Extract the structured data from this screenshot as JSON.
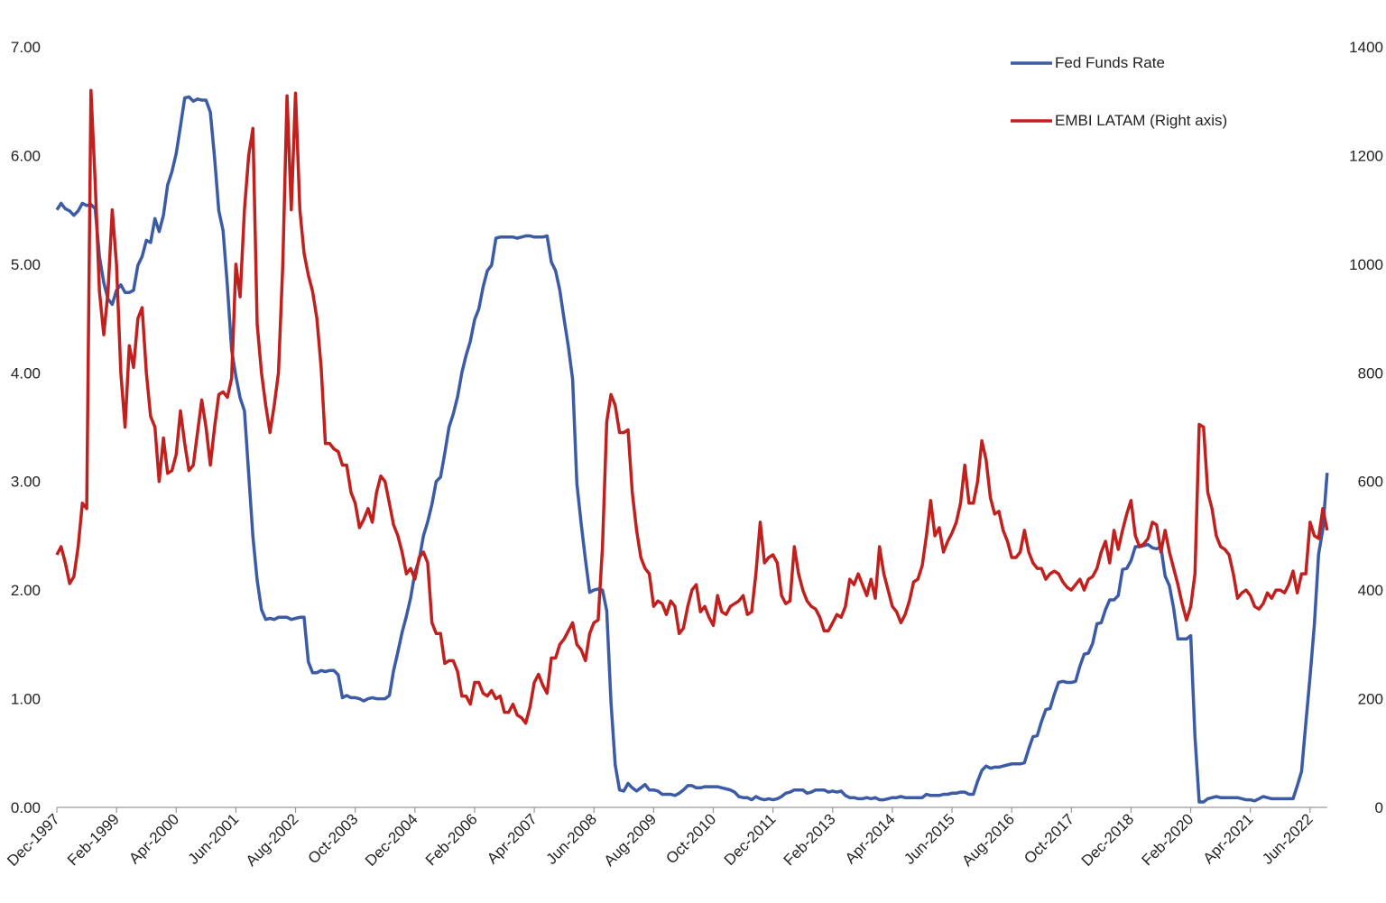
{
  "chart_data": {
    "type": "line",
    "title": "",
    "xlabel": "",
    "ylabel": "",
    "x_start": "Dec-1997",
    "frequency": "monthly",
    "x_ticks": [
      "Dec-1997",
      "Feb-1999",
      "Apr-2000",
      "Jun-2001",
      "Aug-2002",
      "Oct-2003",
      "Dec-2004",
      "Feb-2006",
      "Apr-2007",
      "Jun-2008",
      "Aug-2009",
      "Oct-2010",
      "Dec-2011",
      "Feb-2013",
      "Apr-2014",
      "Jun-2015",
      "Aug-2016",
      "Oct-2017",
      "Dec-2018",
      "Feb-2020",
      "Apr-2021",
      "Jun-2022"
    ],
    "y_left": {
      "lim": [
        0,
        7
      ],
      "ticks": [
        "0.00",
        "1.00",
        "2.00",
        "3.00",
        "4.00",
        "5.00",
        "6.00",
        "7.00"
      ]
    },
    "y_right": {
      "lim": [
        0,
        1400
      ],
      "ticks": [
        "0",
        "200",
        "400",
        "600",
        "800",
        "1000",
        "1200",
        "1400"
      ]
    },
    "grid": false,
    "legend_position": "top-right",
    "series": [
      {
        "name": "Fed Funds Rate",
        "axis": "left",
        "color": "#3B5BA5",
        "values": [
          5.5,
          5.56,
          5.51,
          5.49,
          5.45,
          5.49,
          5.56,
          5.54,
          5.55,
          5.51,
          5.07,
          4.83,
          4.68,
          4.63,
          4.76,
          4.81,
          4.74,
          4.74,
          4.76,
          4.99,
          5.07,
          5.22,
          5.2,
          5.42,
          5.3,
          5.45,
          5.73,
          5.85,
          6.02,
          6.27,
          6.53,
          6.54,
          6.5,
          6.52,
          6.51,
          6.51,
          6.4,
          5.98,
          5.49,
          5.31,
          4.8,
          4.21,
          3.97,
          3.77,
          3.65,
          3.07,
          2.49,
          2.09,
          1.82,
          1.73,
          1.74,
          1.73,
          1.75,
          1.75,
          1.75,
          1.73,
          1.74,
          1.75,
          1.75,
          1.34,
          1.24,
          1.24,
          1.26,
          1.25,
          1.26,
          1.26,
          1.22,
          1.01,
          1.03,
          1.01,
          1.01,
          1.0,
          0.98,
          1.0,
          1.01,
          1.0,
          1.0,
          1.0,
          1.03,
          1.26,
          1.43,
          1.61,
          1.76,
          1.93,
          2.16,
          2.28,
          2.5,
          2.63,
          2.79,
          3.0,
          3.04,
          3.26,
          3.5,
          3.62,
          3.78,
          4.0,
          4.16,
          4.29,
          4.49,
          4.59,
          4.79,
          4.94,
          4.99,
          5.24,
          5.25,
          5.25,
          5.25,
          5.25,
          5.24,
          5.25,
          5.26,
          5.26,
          5.25,
          5.25,
          5.25,
          5.26,
          5.02,
          4.94,
          4.76,
          4.49,
          4.24,
          3.94,
          2.98,
          2.61,
          2.28,
          1.98,
          2.0,
          2.01,
          2.0,
          1.81,
          0.97,
          0.39,
          0.16,
          0.15,
          0.22,
          0.18,
          0.15,
          0.18,
          0.21,
          0.16,
          0.16,
          0.15,
          0.12,
          0.12,
          0.12,
          0.11,
          0.13,
          0.16,
          0.2,
          0.2,
          0.18,
          0.18,
          0.19,
          0.19,
          0.19,
          0.19,
          0.18,
          0.17,
          0.16,
          0.14,
          0.1,
          0.09,
          0.09,
          0.07,
          0.1,
          0.08,
          0.07,
          0.08,
          0.07,
          0.08,
          0.1,
          0.13,
          0.14,
          0.16,
          0.16,
          0.16,
          0.13,
          0.14,
          0.16,
          0.16,
          0.16,
          0.14,
          0.15,
          0.14,
          0.15,
          0.11,
          0.09,
          0.09,
          0.08,
          0.08,
          0.09,
          0.08,
          0.09,
          0.07,
          0.07,
          0.08,
          0.09,
          0.09,
          0.1,
          0.09,
          0.09,
          0.09,
          0.09,
          0.09,
          0.12,
          0.11,
          0.11,
          0.11,
          0.12,
          0.12,
          0.13,
          0.13,
          0.14,
          0.14,
          0.12,
          0.12,
          0.24,
          0.34,
          0.38,
          0.36,
          0.37,
          0.37,
          0.38,
          0.39,
          0.4,
          0.4,
          0.4,
          0.41,
          0.54,
          0.65,
          0.66,
          0.79,
          0.9,
          0.91,
          1.04,
          1.15,
          1.16,
          1.15,
          1.15,
          1.16,
          1.3,
          1.41,
          1.42,
          1.51,
          1.69,
          1.7,
          1.82,
          1.91,
          1.91,
          1.95,
          2.19,
          2.2,
          2.27,
          2.4,
          2.4,
          2.41,
          2.42,
          2.39,
          2.38,
          2.4,
          2.13,
          2.04,
          1.83,
          1.55,
          1.55,
          1.55,
          1.58,
          0.65,
          0.05,
          0.05,
          0.08,
          0.09,
          0.1,
          0.09,
          0.09,
          0.09,
          0.09,
          0.09,
          0.08,
          0.07,
          0.07,
          0.06,
          0.08,
          0.1,
          0.09,
          0.08,
          0.08,
          0.08,
          0.08,
          0.08,
          0.08,
          0.2,
          0.33,
          0.77,
          1.21,
          1.68,
          2.33,
          2.56,
          3.08
        ]
      },
      {
        "name": "EMBI LATAM (Right axis)",
        "axis": "right",
        "color": "#C0211F",
        "values": [
          465,
          480,
          450,
          412,
          425,
          480,
          560,
          550,
          1320,
          1150,
          950,
          870,
          950,
          1100,
          1000,
          800,
          700,
          850,
          810,
          900,
          920,
          800,
          720,
          700,
          600,
          680,
          615,
          620,
          650,
          730,
          670,
          620,
          630,
          690,
          750,
          700,
          630,
          700,
          760,
          765,
          755,
          790,
          1000,
          940,
          1100,
          1200,
          1250,
          890,
          800,
          740,
          690,
          740,
          800,
          1000,
          1310,
          1100,
          1315,
          1100,
          1020,
          980,
          950,
          900,
          810,
          670,
          670,
          660,
          655,
          630,
          630,
          580,
          560,
          515,
          530,
          550,
          525,
          580,
          610,
          600,
          560,
          520,
          500,
          470,
          430,
          440,
          420,
          460,
          470,
          450,
          340,
          320,
          320,
          265,
          270,
          270,
          250,
          205,
          205,
          190,
          230,
          230,
          210,
          205,
          215,
          200,
          205,
          175,
          175,
          190,
          170,
          165,
          155,
          185,
          230,
          245,
          225,
          210,
          275,
          275,
          300,
          310,
          325,
          340,
          300,
          290,
          270,
          320,
          340,
          345,
          480,
          710,
          760,
          740,
          690,
          690,
          695,
          580,
          510,
          460,
          440,
          430,
          370,
          380,
          375,
          355,
          380,
          370,
          320,
          330,
          370,
          400,
          410,
          360,
          370,
          350,
          335,
          390,
          360,
          355,
          370,
          375,
          380,
          390,
          355,
          360,
          430,
          525,
          450,
          460,
          465,
          450,
          390,
          375,
          380,
          480,
          430,
          400,
          380,
          370,
          365,
          350,
          325,
          325,
          340,
          355,
          350,
          370,
          420,
          410,
          430,
          410,
          390,
          420,
          385,
          480,
          430,
          400,
          370,
          360,
          340,
          355,
          380,
          415,
          420,
          445,
          500,
          565,
          500,
          515,
          470,
          490,
          505,
          525,
          560,
          630,
          560,
          560,
          600,
          675,
          640,
          570,
          540,
          545,
          510,
          490,
          460,
          460,
          470,
          510,
          470,
          450,
          440,
          440,
          420,
          430,
          435,
          430,
          415,
          405,
          400,
          410,
          420,
          400,
          420,
          425,
          440,
          470,
          490,
          450,
          510,
          475,
          510,
          540,
          565,
          500,
          480,
          485,
          495,
          525,
          520,
          470,
          510,
          470,
          440,
          410,
          375,
          345,
          370,
          430,
          705,
          700,
          580,
          550,
          500,
          480,
          475,
          465,
          430,
          385,
          395,
          400,
          390,
          370,
          365,
          375,
          395,
          385,
          400,
          400,
          395,
          410,
          435,
          395,
          430,
          430,
          525,
          500,
          495,
          550,
          510
        ]
      }
    ]
  }
}
